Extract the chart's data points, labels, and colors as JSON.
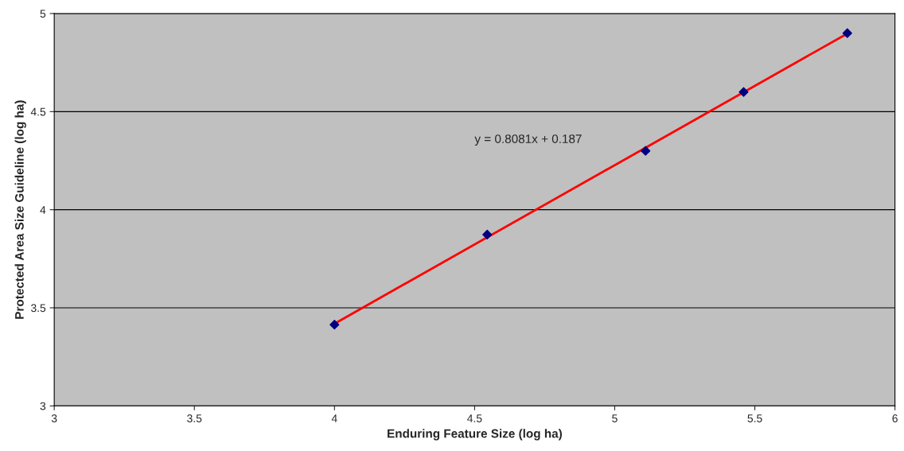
{
  "chart_data": {
    "type": "scatter",
    "xlabel": "Enduring Feature Size (log ha)",
    "ylabel": "Protected Area Size Guideline (log ha)",
    "xlim": [
      3,
      6
    ],
    "xticks": [
      3,
      3.5,
      4,
      4.5,
      5,
      5.5,
      6
    ],
    "ylim": [
      3,
      5
    ],
    "yticks": [
      3,
      3.5,
      4,
      4.5,
      5
    ],
    "grid": "y",
    "series": [
      {
        "marker": "diamond",
        "color": "#000080",
        "x": [
          4.0,
          4.545,
          5.11,
          5.46,
          5.83
        ],
        "values": [
          3.414,
          3.873,
          4.3,
          4.6,
          4.9
        ]
      },
      {
        "type": "line",
        "color": "#ff0000",
        "x": [
          4.0,
          5.83
        ],
        "values": [
          3.419,
          4.898
        ]
      }
    ],
    "annotations": [
      "y = 0.8081x + 0.187"
    ]
  }
}
